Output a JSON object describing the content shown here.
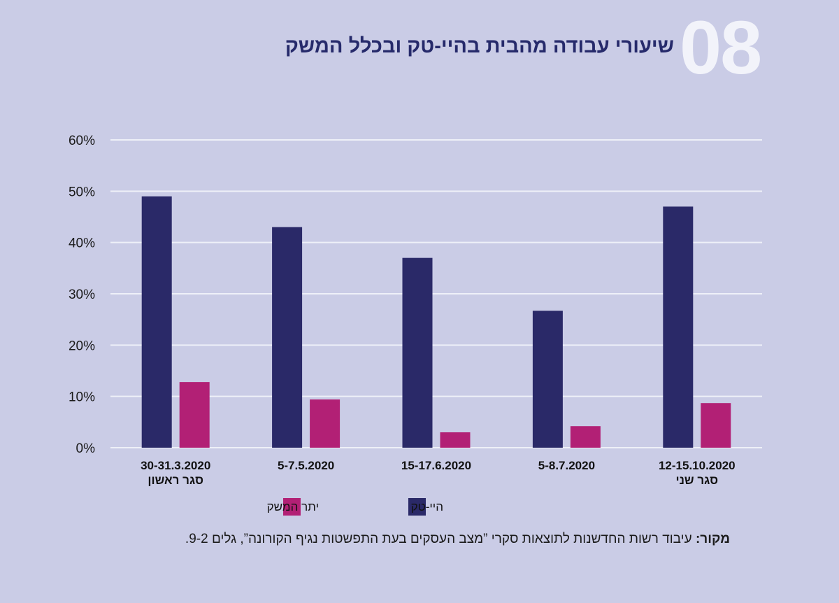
{
  "header": {
    "number": "08",
    "title": "שיעורי עבודה מהבית בהיי-טק ובכלל המשק"
  },
  "colors": {
    "hitech": "#2a2968",
    "rest": "#b22075",
    "grid": "#eef0f8"
  },
  "chart_data": {
    "type": "bar",
    "categories": [
      {
        "date": "30-31.3.2020",
        "sub": "סגר ראשון"
      },
      {
        "date": "5-7.5.2020",
        "sub": ""
      },
      {
        "date": "15-17.6.2020",
        "sub": ""
      },
      {
        "date": "5-8.7.2020",
        "sub": ""
      },
      {
        "date": "12-15.10.2020",
        "sub": "סגר שני"
      }
    ],
    "series": [
      {
        "name": "היי-טק",
        "color": "#2a2968",
        "values": [
          49,
          43,
          37,
          26.7,
          47
        ]
      },
      {
        "name": "יתר המשק",
        "color": "#b22075",
        "values": [
          12.8,
          9.4,
          3,
          4.2,
          8.7
        ]
      }
    ],
    "y_ticks": [
      "0%",
      "10%",
      "20%",
      "30%",
      "40%",
      "50%",
      "60%"
    ],
    "ylim": [
      0,
      60
    ],
    "grid": true,
    "legend_position": "bottom"
  },
  "source": {
    "label": "מקור:",
    "text": "עיבוד רשות החדשנות לתוצאות סקרי ”מצב העסקים בעת התפשטות נגיף הקורונה”, גלים 9-2."
  }
}
